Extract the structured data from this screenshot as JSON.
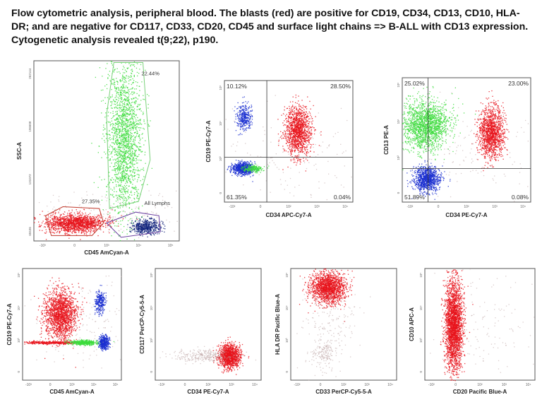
{
  "caption": "Flow cytometric analysis, peripheral blood.  The blasts (red) are positive for CD19, CD34, CD13, CD10, HLA-DR; and are negative for CD117, CD33, CD20, CD45 and surface light chains => B-ALL with CD13 expression.  Cytogenetic analysis revealed t(9;22), p190.",
  "colors": {
    "blasts": "#e8141c",
    "lymphs": "#1b2fd0",
    "lymphs_dark": "#0c1f7a",
    "myeloid": "#3ddc3d",
    "background": "#b9a0a0",
    "gate_green": "#7bd17b",
    "gate_red": "#c0392b",
    "gate_purple": "#6a3fa0",
    "axis": "#555555"
  },
  "chart_data": [
    {
      "id": "p1",
      "type": "scatter",
      "xlabel": "CD45 AmCyan-A",
      "ylabel": "SSC-A",
      "y_ticks": [
        "262144",
        "196608",
        "131072",
        "65536"
      ],
      "x_ticks": [
        "-10³",
        "0",
        "10³",
        "10⁴",
        "10⁵"
      ],
      "annotations": [
        {
          "text": "22.44%"
        },
        {
          "text": "27.35%"
        },
        {
          "text": "All Lymphs"
        }
      ],
      "populations": [
        {
          "color": "myeloid",
          "cx": 0.62,
          "cy": 0.42,
          "sx": 0.06,
          "sy": 0.22,
          "n": 1900
        },
        {
          "color": "blasts",
          "cx": 0.28,
          "cy": 0.9,
          "sx": 0.1,
          "sy": 0.025,
          "n": 1500
        },
        {
          "color": "lymphs_dark",
          "cx": 0.77,
          "cy": 0.92,
          "sx": 0.05,
          "sy": 0.02,
          "n": 500
        },
        {
          "color": "background",
          "cx": 0.5,
          "cy": 0.85,
          "sx": 0.3,
          "sy": 0.06,
          "n": 200
        }
      ]
    },
    {
      "id": "p2",
      "type": "scatter",
      "xlabel": "CD34 APC-Cy7-A",
      "ylabel": "CD19 PE-Cy7-A",
      "x_ticks": [
        "-10²",
        "0",
        "10²",
        "10³",
        "10⁴"
      ],
      "y_ticks": [
        "10⁵",
        "10⁴",
        "10³",
        "0"
      ],
      "quadrants": {
        "ul": "10.12%",
        "ur": "28.50%",
        "ll": "61.35%",
        "lr": "0.04%"
      },
      "populations": [
        {
          "color": "lymphs",
          "cx": 0.15,
          "cy": 0.3,
          "sx": 0.03,
          "sy": 0.05,
          "n": 350
        },
        {
          "color": "blasts",
          "cx": 0.57,
          "cy": 0.41,
          "sx": 0.05,
          "sy": 0.1,
          "n": 1300
        },
        {
          "color": "lymphs",
          "cx": 0.14,
          "cy": 0.72,
          "sx": 0.04,
          "sy": 0.025,
          "n": 800
        },
        {
          "color": "myeloid",
          "cx": 0.22,
          "cy": 0.72,
          "sx": 0.04,
          "sy": 0.015,
          "n": 200
        },
        {
          "color": "background",
          "cx": 0.5,
          "cy": 0.6,
          "sx": 0.3,
          "sy": 0.2,
          "n": 150
        }
      ]
    },
    {
      "id": "p3",
      "type": "scatter",
      "xlabel": "CD34 PE-Cy7-A",
      "ylabel": "CD13 PE-A",
      "x_ticks": [
        "-10²",
        "0",
        "10²",
        "10³",
        "10⁴"
      ],
      "y_ticks": [
        "10⁵",
        "10⁴",
        "10³",
        "0"
      ],
      "quadrants": {
        "ul": "25.02%",
        "ur": "23.00%",
        "ll": "51.89%",
        "lr": "0.08%"
      },
      "populations": [
        {
          "color": "myeloid",
          "cx": 0.18,
          "cy": 0.38,
          "sx": 0.09,
          "sy": 0.1,
          "n": 1700
        },
        {
          "color": "blasts",
          "cx": 0.69,
          "cy": 0.44,
          "sx": 0.05,
          "sy": 0.1,
          "n": 1300
        },
        {
          "color": "lymphs",
          "cx": 0.19,
          "cy": 0.81,
          "sx": 0.05,
          "sy": 0.05,
          "n": 1000
        },
        {
          "color": "background",
          "cx": 0.5,
          "cy": 0.6,
          "sx": 0.3,
          "sy": 0.2,
          "n": 150
        }
      ]
    },
    {
      "id": "p4",
      "type": "scatter",
      "xlabel": "CD45 AmCyan-A",
      "ylabel": "CD19 PE-Cy7-A",
      "x_ticks": [
        "-10³",
        "0",
        "10³",
        "10⁴",
        "10⁵"
      ],
      "y_ticks": [
        "10⁵",
        "10⁴",
        "10³",
        "0"
      ],
      "populations": [
        {
          "color": "blasts",
          "cx": 0.38,
          "cy": 0.41,
          "sx": 0.08,
          "sy": 0.11,
          "n": 1700
        },
        {
          "color": "lymphs",
          "cx": 0.78,
          "cy": 0.3,
          "sx": 0.025,
          "sy": 0.05,
          "n": 280
        },
        {
          "color": "blasts",
          "cx": 0.3,
          "cy": 0.66,
          "sx": 0.14,
          "sy": 0.006,
          "n": 400
        },
        {
          "color": "myeloid",
          "cx": 0.62,
          "cy": 0.66,
          "sx": 0.07,
          "sy": 0.01,
          "n": 500
        },
        {
          "color": "lymphs",
          "cx": 0.82,
          "cy": 0.66,
          "sx": 0.025,
          "sy": 0.03,
          "n": 400
        },
        {
          "color": "background",
          "cx": 0.6,
          "cy": 0.5,
          "sx": 0.25,
          "sy": 0.2,
          "n": 150
        }
      ]
    },
    {
      "id": "p5",
      "type": "scatter",
      "xlabel": "CD34 PE-Cy7-A",
      "ylabel": "CD117 PerCP-Cy5-5-A",
      "x_ticks": [
        "-10²",
        "0",
        "10²",
        "10³",
        "10⁴"
      ],
      "y_ticks": [
        "10⁵",
        "10⁴",
        "10³",
        "0"
      ],
      "populations": [
        {
          "color": "blasts",
          "cx": 0.7,
          "cy": 0.78,
          "sx": 0.05,
          "sy": 0.05,
          "n": 1300
        },
        {
          "color": "background",
          "cx": 0.45,
          "cy": 0.78,
          "sx": 0.15,
          "sy": 0.03,
          "n": 300
        }
      ]
    },
    {
      "id": "p6",
      "type": "scatter",
      "xlabel": "CD33 PerCP-Cy5-5-A",
      "ylabel": "HLA DR Pacific Blue-A",
      "x_ticks": [
        "-10²",
        "0",
        "10²",
        "10³",
        "10⁴"
      ],
      "y_ticks": [
        "10⁵",
        "10⁴",
        "10³",
        "0"
      ],
      "populations": [
        {
          "color": "blasts",
          "cx": 0.35,
          "cy": 0.17,
          "sx": 0.08,
          "sy": 0.07,
          "n": 1600
        },
        {
          "color": "background",
          "cx": 0.35,
          "cy": 0.5,
          "sx": 0.12,
          "sy": 0.25,
          "n": 250
        },
        {
          "color": "background",
          "cx": 0.3,
          "cy": 0.75,
          "sx": 0.05,
          "sy": 0.05,
          "n": 120
        }
      ]
    },
    {
      "id": "p7",
      "type": "scatter",
      "xlabel": "CD20 Pacific Blue-A",
      "ylabel": "CD10 APC-A",
      "x_ticks": [
        "-10²",
        "0",
        "10²",
        "10³",
        "10⁴"
      ],
      "y_ticks": [
        "10⁵",
        "10⁴",
        "10³",
        "0"
      ],
      "populations": [
        {
          "color": "blasts",
          "cx": 0.26,
          "cy": 0.5,
          "sx": 0.04,
          "sy": 0.2,
          "n": 2500
        },
        {
          "color": "background",
          "cx": 0.5,
          "cy": 0.5,
          "sx": 0.25,
          "sy": 0.25,
          "n": 150
        }
      ]
    }
  ]
}
